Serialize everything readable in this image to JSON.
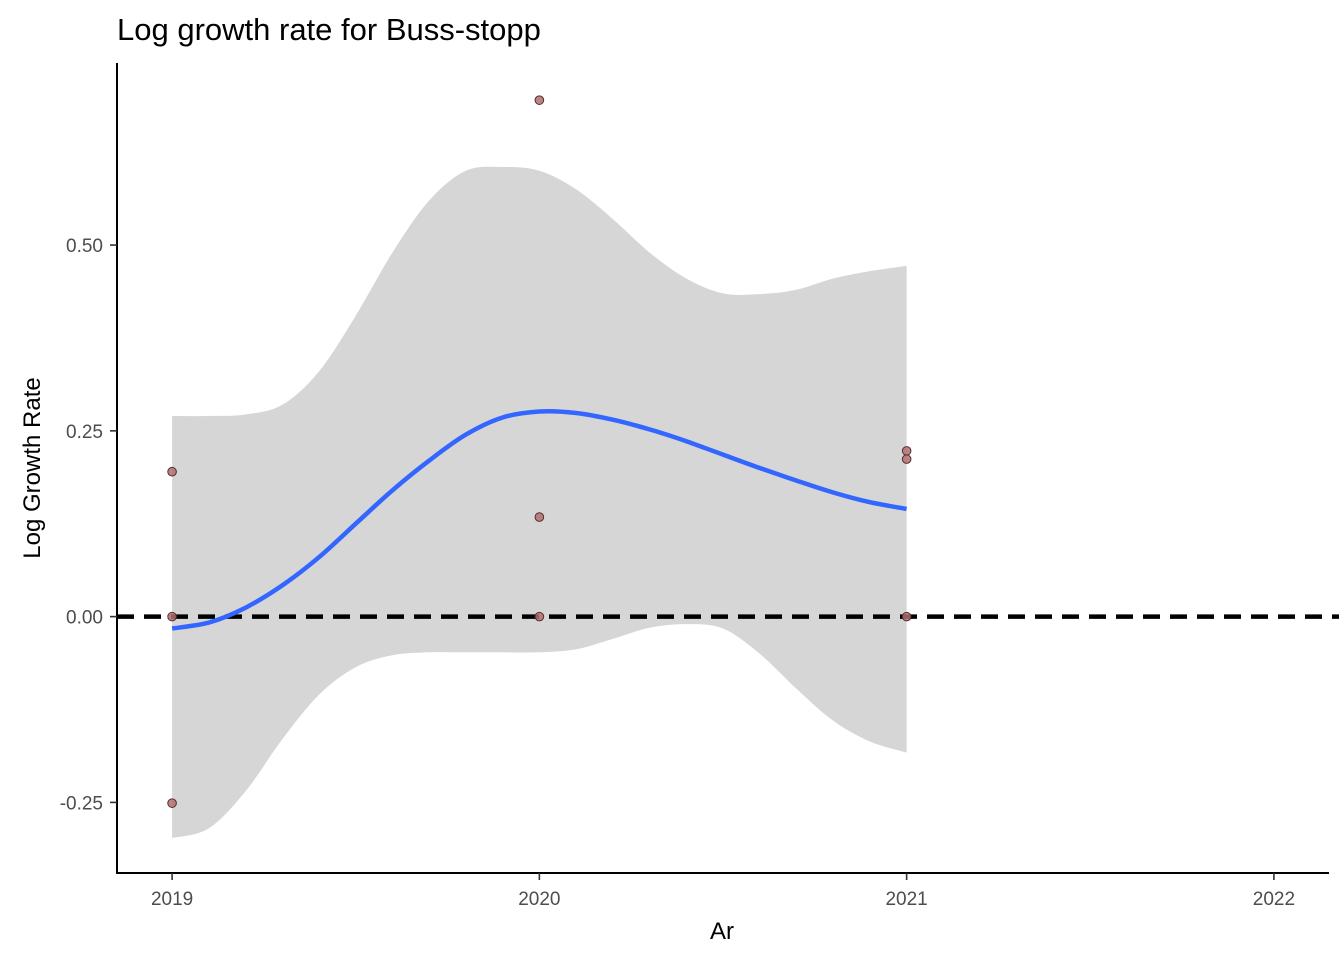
{
  "chart_data": {
    "type": "scatter",
    "title": "Log growth rate for Buss-stopp",
    "xlabel": "Ar",
    "ylabel": "Log Growth Rate",
    "xlim": [
      2018.85,
      2022.15
    ],
    "ylim": [
      -0.345,
      0.745
    ],
    "x_ticks": [
      2019,
      2020,
      2021,
      2022
    ],
    "x_tick_labels": [
      "2019",
      "2020",
      "2021",
      "2022"
    ],
    "y_ticks": [
      -0.25,
      0,
      0.25,
      0.5
    ],
    "y_tick_labels": [
      "-0.25",
      "0.00",
      "0.25",
      "0.50"
    ],
    "grid": false,
    "legend": "none",
    "colors": {
      "points_fill": "#b07070",
      "points_stroke": "#5a2a2a",
      "smooth_line": "#3366ff",
      "confidence_band": "#d6d6d6",
      "reference_line": "#000000"
    },
    "points": [
      {
        "x": 2019,
        "y": 0.195
      },
      {
        "x": 2019,
        "y": 0.0
      },
      {
        "x": 2019,
        "y": -0.251
      },
      {
        "x": 2020,
        "y": 0.695
      },
      {
        "x": 2020,
        "y": 0.134
      },
      {
        "x": 2020,
        "y": 0.0
      },
      {
        "x": 2021,
        "y": 0.223
      },
      {
        "x": 2021,
        "y": 0.212
      },
      {
        "x": 2021,
        "y": 0.0
      }
    ],
    "smooth": {
      "method": "loess",
      "x": [
        2019.0,
        2019.1,
        2019.2,
        2019.3,
        2019.4,
        2019.5,
        2019.6,
        2019.7,
        2019.8,
        2019.9,
        2020.0,
        2020.1,
        2020.2,
        2020.3,
        2020.4,
        2020.5,
        2020.6,
        2020.7,
        2020.8,
        2020.9,
        2021.0
      ],
      "y": [
        -0.016,
        -0.008,
        0.012,
        0.042,
        0.08,
        0.125,
        0.17,
        0.21,
        0.245,
        0.268,
        0.276,
        0.274,
        0.265,
        0.252,
        0.236,
        0.218,
        0.2,
        0.183,
        0.167,
        0.154,
        0.145
      ],
      "lower": [
        -0.298,
        -0.285,
        -0.235,
        -0.165,
        -0.105,
        -0.068,
        -0.052,
        -0.048,
        -0.048,
        -0.048,
        -0.048,
        -0.044,
        -0.03,
        -0.015,
        -0.01,
        -0.016,
        -0.05,
        -0.097,
        -0.14,
        -0.168,
        -0.183
      ],
      "upper": [
        0.27,
        0.27,
        0.272,
        0.285,
        0.33,
        0.405,
        0.49,
        0.56,
        0.6,
        0.605,
        0.6,
        0.575,
        0.535,
        0.49,
        0.455,
        0.435,
        0.434,
        0.44,
        0.455,
        0.465,
        0.472
      ]
    },
    "reference_line": {
      "y": 0,
      "style": "dashed"
    }
  }
}
